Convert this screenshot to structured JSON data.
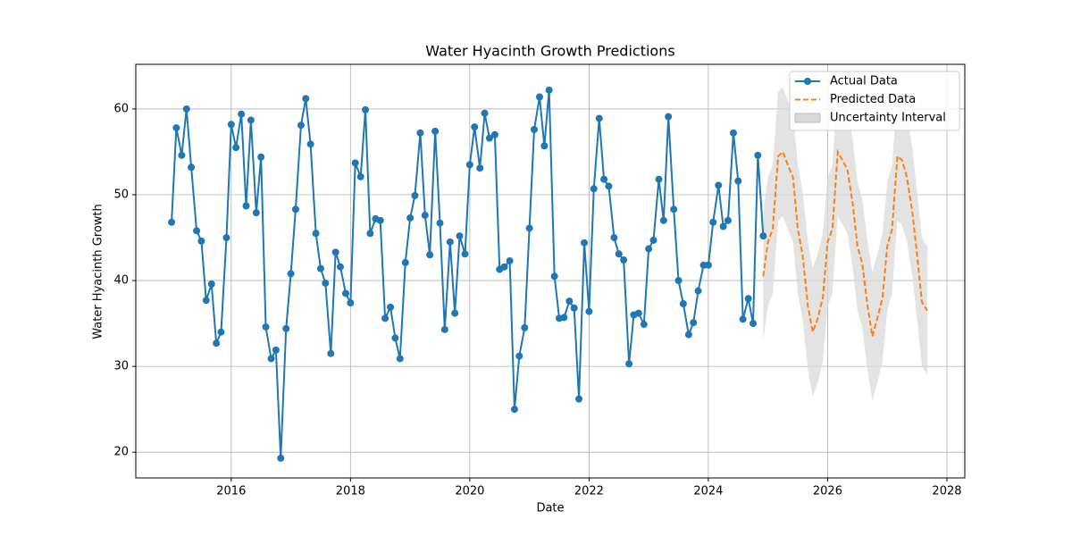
{
  "chart_data": {
    "type": "line",
    "title": "Water Hyacinth Growth Predictions",
    "x_label": "Date",
    "y_label": "Water Hyacinth Growth",
    "xlim": [
      2014.4,
      2028.3
    ],
    "xticks": [
      2016,
      2018,
      2020,
      2022,
      2024,
      2026,
      2028
    ],
    "ylim": [
      17,
      65.2
    ],
    "yticks": [
      20,
      30,
      40,
      50,
      60
    ],
    "grid": true,
    "legend": "upper right",
    "series": [
      {
        "name": "Actual Data",
        "color": "#1f77b4",
        "markers": true,
        "x": [
          2015.0,
          2015.08,
          2015.17,
          2015.25,
          2015.33,
          2015.42,
          2015.5,
          2015.58,
          2015.67,
          2015.75,
          2015.83,
          2015.92,
          2016.0,
          2016.08,
          2016.17,
          2016.25,
          2016.33,
          2016.42,
          2016.5,
          2016.58,
          2016.67,
          2016.75,
          2016.83,
          2016.92,
          2017.0,
          2017.08,
          2017.17,
          2017.25,
          2017.33,
          2017.42,
          2017.5,
          2017.58,
          2017.67,
          2017.75,
          2017.83,
          2017.92,
          2018.0,
          2018.08,
          2018.17,
          2018.25,
          2018.33,
          2018.42,
          2018.5,
          2018.58,
          2018.67,
          2018.75,
          2018.83,
          2018.92,
          2019.0,
          2019.08,
          2019.17,
          2019.25,
          2019.33,
          2019.42,
          2019.5,
          2019.58,
          2019.67,
          2019.75,
          2019.83,
          2019.92,
          2020.0,
          2020.08,
          2020.17,
          2020.25,
          2020.33,
          2020.42,
          2020.5,
          2020.58,
          2020.67,
          2020.75,
          2020.83,
          2020.92,
          2021.0,
          2021.08,
          2021.17,
          2021.25,
          2021.33,
          2021.42,
          2021.5,
          2021.58,
          2021.67,
          2021.75,
          2021.83,
          2021.92,
          2022.0,
          2022.08,
          2022.17,
          2022.25,
          2022.33,
          2022.42,
          2022.5,
          2022.58,
          2022.67,
          2022.75,
          2022.83,
          2022.92,
          2023.0,
          2023.08,
          2023.17,
          2023.25,
          2023.33,
          2023.42,
          2023.5,
          2023.58,
          2023.67,
          2023.75,
          2023.83,
          2023.92,
          2024.0,
          2024.08,
          2024.17,
          2024.25,
          2024.33,
          2024.42,
          2024.5,
          2024.58,
          2024.67,
          2024.75,
          2024.83,
          2024.92
        ],
        "values": [
          46.8,
          57.8,
          54.6,
          60.0,
          53.2,
          45.8,
          44.6,
          37.7,
          39.6,
          32.7,
          34.0,
          45.0,
          58.2,
          55.5,
          59.4,
          48.7,
          58.7,
          47.9,
          54.4,
          34.6,
          30.9,
          31.9,
          19.3,
          34.4,
          40.8,
          48.3,
          58.1,
          61.2,
          55.9,
          45.5,
          41.4,
          39.7,
          31.5,
          43.3,
          41.6,
          38.5,
          37.4,
          53.7,
          52.1,
          59.9,
          45.5,
          47.2,
          47.0,
          35.6,
          36.9,
          33.3,
          30.9,
          42.1,
          47.3,
          49.9,
          57.2,
          47.6,
          43.0,
          57.4,
          46.7,
          34.3,
          44.5,
          36.2,
          45.2,
          43.1,
          53.5,
          57.9,
          53.1,
          59.5,
          56.6,
          57.0,
          41.3,
          41.6,
          42.3,
          25.0,
          31.2,
          34.5,
          46.1,
          57.6,
          61.4,
          55.7,
          62.2,
          40.5,
          35.6,
          35.7,
          37.6,
          36.8,
          26.2,
          44.4,
          36.4,
          50.7,
          58.9,
          51.8,
          51.0,
          45.0,
          43.1,
          42.4,
          30.3,
          36.0,
          36.2,
          34.9,
          43.7,
          44.7,
          51.8,
          47.0,
          59.1,
          48.3,
          40.0,
          37.3,
          33.7,
          35.1,
          38.8,
          41.8,
          41.8,
          46.8,
          51.1,
          46.3,
          47.0,
          57.2,
          51.6,
          35.5,
          37.9,
          35.0,
          54.6,
          45.2
        ]
      },
      {
        "name": "Predicted Data",
        "color": "#ff7f0e",
        "dashed": true,
        "x": [
          2024.92,
          2025.0,
          2025.08,
          2025.17,
          2025.25,
          2025.33,
          2025.42,
          2025.5,
          2025.58,
          2025.67,
          2025.75,
          2025.83,
          2025.92,
          2026.0,
          2026.08,
          2026.17,
          2026.25,
          2026.33,
          2026.42,
          2026.5,
          2026.58,
          2026.67,
          2026.75,
          2026.83,
          2026.92,
          2027.0,
          2027.08,
          2027.17,
          2027.25,
          2027.33,
          2027.42,
          2027.5,
          2027.58,
          2027.67
        ],
        "values": [
          40.5,
          44.5,
          46,
          54.5,
          55,
          53.5,
          52,
          46,
          43,
          37,
          34,
          35.5,
          38,
          44.5,
          46,
          55,
          54,
          53,
          49,
          44,
          42,
          37,
          33.5,
          35.5,
          38,
          44,
          46,
          54.5,
          54,
          52,
          48,
          43,
          37.5,
          36.5
        ]
      },
      {
        "name": "Uncertainty Interval",
        "color": "#d9d9d9",
        "x": [
          2024.92,
          2025.0,
          2025.08,
          2025.17,
          2025.25,
          2025.33,
          2025.42,
          2025.5,
          2025.58,
          2025.67,
          2025.75,
          2025.83,
          2025.92,
          2026.0,
          2026.08,
          2026.17,
          2026.25,
          2026.33,
          2026.42,
          2026.5,
          2026.58,
          2026.67,
          2026.75,
          2026.83,
          2026.92,
          2027.0,
          2027.08,
          2027.17,
          2027.25,
          2027.33,
          2027.42,
          2027.5,
          2027.58,
          2027.67
        ],
        "lower": [
          33,
          37,
          38.5,
          47,
          47.5,
          46,
          44.5,
          38.5,
          35.5,
          29.5,
          26.5,
          28,
          30.5,
          37,
          38.5,
          47.5,
          46.5,
          45.5,
          41.5,
          36.5,
          34.5,
          29.5,
          26,
          28,
          30.5,
          36.5,
          38.5,
          47,
          46.5,
          44.5,
          40.5,
          35.5,
          30,
          29
        ],
        "upper": [
          48,
          52,
          53.5,
          62,
          62.5,
          61,
          59.5,
          53.5,
          50.5,
          44.5,
          41.5,
          43,
          45.5,
          52,
          53.5,
          62.5,
          61.5,
          60.5,
          56.5,
          51.5,
          49.5,
          44.5,
          41,
          43,
          45.5,
          51.5,
          53.5,
          62,
          61.5,
          59.5,
          55.5,
          50.5,
          45,
          44
        ]
      }
    ]
  }
}
